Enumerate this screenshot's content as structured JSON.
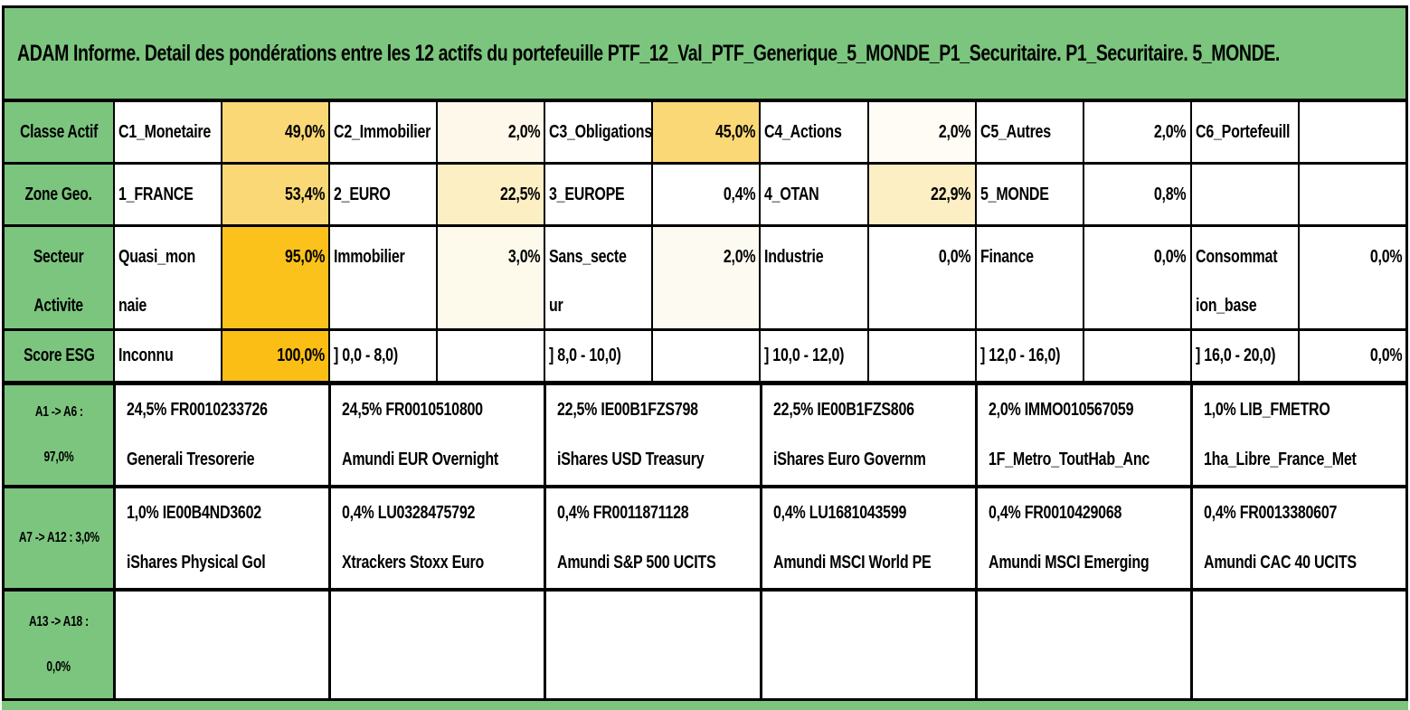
{
  "title": "ADAM Informe. Detail des pondérations entre les 12 actifs du portefeuille PTF_12_Val_PTF_Generique_5_MONDE_P1_Securitaire. P1_Securitaire. 5_MONDE.",
  "colors": {
    "header_green": "#7cc57e",
    "strong_orange": "#fbbe15",
    "gold": "#fbd876",
    "cream": "#fcefc4",
    "black_border": "#000000"
  },
  "rows": {
    "classe": {
      "header": "Classe Actif",
      "cells": [
        {
          "label": "C1_Monetaire",
          "value": "49,0%",
          "bg": "#fbd876"
        },
        {
          "label": "C2_Immobilier",
          "value": "2,0%",
          "bg": "#fdf8ea"
        },
        {
          "label": "C3_Obligations",
          "value": "45,0%",
          "bg": "#fbd876"
        },
        {
          "label": "C4_Actions",
          "value": "2,0%",
          "bg": "#fefcf5"
        },
        {
          "label": "C5_Autres",
          "value": "2,0%",
          "bg": "#ffffff"
        },
        {
          "label": "C6_Portefeuill",
          "value": "",
          "bg": "#ffffff"
        }
      ]
    },
    "zone": {
      "header": "Zone Geo.",
      "cells": [
        {
          "label": "1_FRANCE",
          "value": "53,4%",
          "bg": "#fbd876"
        },
        {
          "label": "2_EURO",
          "value": "22,5%",
          "bg": "#fcefc4"
        },
        {
          "label": "3_EUROPE",
          "value": "0,4%",
          "bg": "#ffffff"
        },
        {
          "label": "4_OTAN",
          "value": "22,9%",
          "bg": "#fcefc4"
        },
        {
          "label": "5_MONDE",
          "value": "0,8%",
          "bg": "#ffffff"
        },
        {
          "label": "",
          "value": "",
          "bg": "#ffffff"
        }
      ]
    },
    "secteur": {
      "header_line1": "Secteur",
      "header_line2": "Activite",
      "cells": [
        {
          "label": "Quasi_monnaie",
          "value": "95,0%",
          "bg": "#fbc21b"
        },
        {
          "label": "Immobilier",
          "value": "3,0%",
          "bg": "#fdfaec"
        },
        {
          "label": "Sans_secteur",
          "value": "2,0%",
          "bg": "#fdfbf1"
        },
        {
          "label": "Industrie",
          "value": "0,0%",
          "bg": "#ffffff"
        },
        {
          "label": "Finance",
          "value": "0,0%",
          "bg": "#ffffff"
        },
        {
          "label": "Consommation_base",
          "value": "0,0%",
          "bg": "#ffffff"
        }
      ]
    },
    "esg": {
      "header": "Score ESG",
      "cells": [
        {
          "label": "Inconnu",
          "value": "100,0%",
          "bg": "#fbbe15"
        },
        {
          "label": "] 0,0 - 8,0)",
          "value": "",
          "bg": "#ffffff"
        },
        {
          "label": "] 8,0 - 10,0)",
          "value": "",
          "bg": "#ffffff"
        },
        {
          "label": "] 10,0 - 12,0)",
          "value": "",
          "bg": "#ffffff"
        },
        {
          "label": "] 12,0 - 16,0)",
          "value": "",
          "bg": "#ffffff"
        },
        {
          "label": "] 16,0 - 20,0)",
          "value": "0,0%",
          "bg": "#ffffff"
        }
      ]
    }
  },
  "assets": {
    "a1_a6": {
      "header_line1": "A1 -> A6 :",
      "header_line2": "97,0%",
      "cells": [
        {
          "line1": "24,5% FR0010233726",
          "line2": "Generali Tresorerie"
        },
        {
          "line1": "24,5% FR0010510800",
          "line2": "Amundi EUR Overnight"
        },
        {
          "line1": "22,5% IE00B1FZS798",
          "line2": "iShares USD Treasury"
        },
        {
          "line1": "22,5% IE00B1FZS806",
          "line2": "iShares Euro Governm"
        },
        {
          "line1": "2,0% IMMO010567059",
          "line2": "1F_Metro_ToutHab_Anc"
        },
        {
          "line1": "1,0% LIB_FMETRO",
          "line2": "1ha_Libre_France_Met"
        }
      ]
    },
    "a7_a12": {
      "header_line1": "A7 -> A12 : 3,0%",
      "header_line2": "",
      "cells": [
        {
          "line1": "1,0% IE00B4ND3602",
          "line2": "iShares Physical Gol"
        },
        {
          "line1": "0,4% LU0328475792",
          "line2": "Xtrackers Stoxx Euro"
        },
        {
          "line1": "0,4% FR0011871128",
          "line2": "Amundi S&P 500 UCITS"
        },
        {
          "line1": "0,4% LU1681043599",
          "line2": "Amundi MSCI World PE"
        },
        {
          "line1": "0,4% FR0010429068",
          "line2": "Amundi MSCI Emerging"
        },
        {
          "line1": "0,4% FR0013380607",
          "line2": "Amundi CAC 40 UCITS"
        }
      ]
    },
    "a13_a18": {
      "header_line1": "A13 -> A18 :",
      "header_line2": "0,0%",
      "cells": [
        {
          "line1": "",
          "line2": ""
        },
        {
          "line1": "",
          "line2": ""
        },
        {
          "line1": "",
          "line2": ""
        },
        {
          "line1": "",
          "line2": ""
        },
        {
          "line1": "",
          "line2": ""
        },
        {
          "line1": "",
          "line2": ""
        }
      ]
    }
  }
}
